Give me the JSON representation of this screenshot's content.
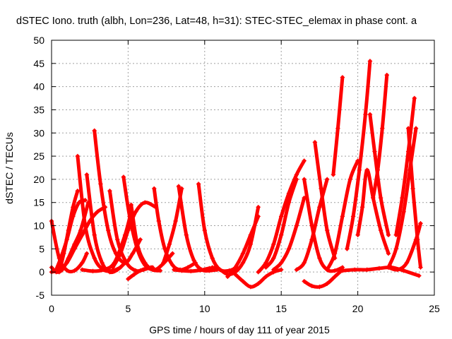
{
  "chart_data": {
    "type": "scatter",
    "title": "dSTEC Iono. truth (albh, Lon=236, Lat=48, h=31): STEC-STEC_elemax in phase cont. a",
    "xlabel": "GPS time / hours of day 111 of year 2015",
    "ylabel": "dSTEC  / TECUs",
    "xlim": [
      0,
      25
    ],
    "ylim": [
      -5,
      50
    ],
    "xticks": [
      "0",
      "5",
      "10",
      "15",
      "20",
      "25"
    ],
    "yticks": [
      "-5",
      "0",
      "5",
      "10",
      "15",
      "20",
      "25",
      "30",
      "35",
      "40",
      "45",
      "50"
    ],
    "grid": true,
    "marker": "+",
    "color": "#ff0000",
    "series": [
      {
        "x": [
          0.0,
          0.5,
          1.0,
          1.5,
          2.0,
          2.3
        ],
        "y": [
          11,
          3,
          0.4,
          0.3,
          2,
          4
        ]
      },
      {
        "x": [
          0.0,
          0.3,
          0.7,
          1.1,
          1.5,
          1.9,
          2.4
        ],
        "y": [
          1,
          0,
          0.5,
          3,
          6,
          9,
          15
        ]
      },
      {
        "x": [
          0.0,
          0.5,
          1.0,
          1.5,
          2.0,
          2.5,
          3.0,
          3.5
        ],
        "y": [
          0,
          0.5,
          2,
          5,
          8,
          11,
          13,
          14
        ]
      },
      {
        "x": [
          0.3,
          0.6,
          1.0,
          1.4,
          1.8,
          2.2
        ],
        "y": [
          0.5,
          3,
          7,
          12,
          15,
          15.5
        ]
      },
      {
        "x": [
          0.5,
          0.8,
          1.1,
          1.4,
          1.7
        ],
        "y": [
          0,
          4,
          9,
          14,
          17.5
        ]
      },
      {
        "x": [
          1.7,
          2.2,
          2.8,
          3.4,
          4.0,
          4.5
        ],
        "y": [
          25,
          10,
          3,
          0.5,
          0.3,
          1
        ]
      },
      {
        "x": [
          2.3,
          2.8,
          3.3,
          3.8,
          4.3,
          4.8
        ],
        "y": [
          21,
          8,
          2,
          0,
          0.5,
          2
        ]
      },
      {
        "x": [
          2.8,
          3.2,
          3.7,
          4.2,
          4.8,
          5.3,
          5.8
        ],
        "y": [
          30.5,
          19,
          9,
          4,
          2,
          4,
          7
        ]
      },
      {
        "x": [
          2.0,
          2.7,
          3.4,
          4.1,
          4.8,
          5.2
        ],
        "y": [
          0.5,
          0.2,
          0.5,
          2,
          8,
          13
        ]
      },
      {
        "x": [
          3.8,
          4.3,
          4.9,
          5.5,
          6.0,
          6.5
        ],
        "y": [
          17.5,
          7,
          2,
          0.3,
          0.5,
          1
        ]
      },
      {
        "x": [
          4.0,
          4.5,
          5.0,
          5.5,
          6.1,
          6.8
        ],
        "y": [
          1,
          4,
          9,
          13,
          15,
          14
        ]
      },
      {
        "x": [
          4.7,
          5.1,
          5.6,
          6.1,
          6.7,
          7.2,
          7.9
        ],
        "y": [
          20.5,
          12,
          5,
          1.5,
          0.5,
          1.5,
          4
        ]
      },
      {
        "x": [
          5.2,
          5.6,
          6.1,
          6.6,
          7.1
        ],
        "y": [
          14.5,
          6,
          2,
          0.5,
          0.3
        ]
      },
      {
        "x": [
          5.0,
          5.4,
          5.8,
          6.2,
          6.6
        ],
        "y": [
          -1.5,
          -0.5,
          0.3,
          0.8,
          1
        ]
      },
      {
        "x": [
          6.7,
          7.0,
          7.4,
          7.9,
          8.4,
          8.9,
          9.4
        ],
        "y": [
          18,
          11,
          5,
          1.5,
          0.5,
          1,
          2
        ]
      },
      {
        "x": [
          7.3,
          7.7,
          8.1,
          8.5
        ],
        "y": [
          2,
          6,
          11,
          18
        ]
      },
      {
        "x": [
          8.3,
          8.8,
          9.3,
          9.8,
          10.3,
          10.8
        ],
        "y": [
          18.5,
          8,
          2.5,
          0.5,
          0.3,
          0.5
        ]
      },
      {
        "x": [
          9.6,
          10.0,
          10.5,
          11.0,
          11.6,
          12.1
        ],
        "y": [
          19,
          9,
          3,
          0.5,
          0.3,
          1
        ]
      },
      {
        "x": [
          8.0,
          8.5,
          9.1,
          9.7,
          10.3,
          10.8
        ],
        "y": [
          0.5,
          0.3,
          0.2,
          0.4,
          0.8,
          1
        ]
      },
      {
        "x": [
          10.5,
          11.0,
          11.5,
          12.0,
          12.5,
          13.0,
          13.5
        ],
        "y": [
          1,
          0.5,
          -0.5,
          0,
          2,
          6,
          14
        ]
      },
      {
        "x": [
          11.5,
          12.0,
          12.5,
          13.0,
          13.5
        ],
        "y": [
          -1,
          1,
          4,
          8,
          12
        ]
      },
      {
        "x": [
          12.0,
          12.5,
          13.0,
          13.5,
          14.0,
          14.5,
          15.0
        ],
        "y": [
          -0.5,
          -2,
          -3.2,
          -2.5,
          -1,
          0,
          0.5
        ]
      },
      {
        "x": [
          13.5,
          14.0,
          14.5,
          15.0,
          15.5,
          16.0,
          16.5
        ],
        "y": [
          0,
          2,
          6,
          12,
          17,
          21,
          24
        ]
      },
      {
        "x": [
          14.0,
          14.5,
          15.0,
          15.5,
          16.0
        ],
        "y": [
          1,
          3,
          8,
          15,
          20
        ]
      },
      {
        "x": [
          14.5,
          15.0,
          15.5,
          16.0,
          16.5
        ],
        "y": [
          0.5,
          2,
          5,
          10,
          16
        ]
      },
      {
        "x": [
          16.0,
          16.5,
          17.0,
          17.5,
          18.0
        ],
        "y": [
          0.5,
          2,
          7,
          14,
          20
        ]
      },
      {
        "x": [
          16.5,
          17.0,
          17.5,
          18.0,
          18.5,
          19.0
        ],
        "y": [
          20,
          10,
          3,
          0.5,
          0.3,
          1
        ]
      },
      {
        "x": [
          17.2,
          17.6,
          18.0,
          18.5
        ],
        "y": [
          28,
          18,
          9,
          3
        ]
      },
      {
        "x": [
          16.5,
          17.0,
          17.5,
          18.0,
          18.5,
          19.0
        ],
        "y": [
          -2,
          -3,
          -3.2,
          -2.5,
          -1,
          0.5
        ]
      },
      {
        "x": [
          18.0,
          18.5,
          19.0,
          19.5,
          20.0
        ],
        "y": [
          0.5,
          4,
          12,
          20,
          24
        ]
      },
      {
        "x": [
          18.4,
          18.7,
          19.0
        ],
        "y": [
          21,
          31,
          42
        ]
      },
      {
        "x": [
          19.3,
          19.7,
          20.1,
          20.5,
          20.8
        ],
        "y": [
          5,
          12,
          22,
          34,
          45.5
        ]
      },
      {
        "x": [
          20.0,
          20.3,
          20.6,
          21.0,
          21.5,
          22.0
        ],
        "y": [
          8,
          14,
          22,
          16,
          9,
          4
        ]
      },
      {
        "x": [
          20.8,
          21.1,
          21.5,
          22.0
        ],
        "y": [
          34,
          26,
          16,
          8
        ]
      },
      {
        "x": [
          21.0,
          21.3,
          21.6,
          21.9
        ],
        "y": [
          16,
          22,
          31,
          42.5
        ]
      },
      {
        "x": [
          22.0,
          22.5,
          23.0,
          23.4,
          23.8
        ],
        "y": [
          1,
          5,
          13,
          22,
          31
        ]
      },
      {
        "x": [
          22.5,
          22.9,
          23.3,
          23.7
        ],
        "y": [
          8,
          16,
          26,
          37.5
        ]
      },
      {
        "x": [
          23.3,
          23.6,
          23.9,
          24.1
        ],
        "y": [
          31,
          18,
          7,
          1
        ]
      },
      {
        "x": [
          22.0,
          22.6,
          23.2,
          23.8,
          24.1
        ],
        "y": [
          1,
          0.5,
          2,
          7,
          10.5
        ]
      },
      {
        "x": [
          19.0,
          19.8,
          20.6,
          21.4,
          22.2,
          23.0,
          24.0
        ],
        "y": [
          0.3,
          0.5,
          0.5,
          0.8,
          1,
          0.3,
          -0.8
        ]
      }
    ]
  }
}
